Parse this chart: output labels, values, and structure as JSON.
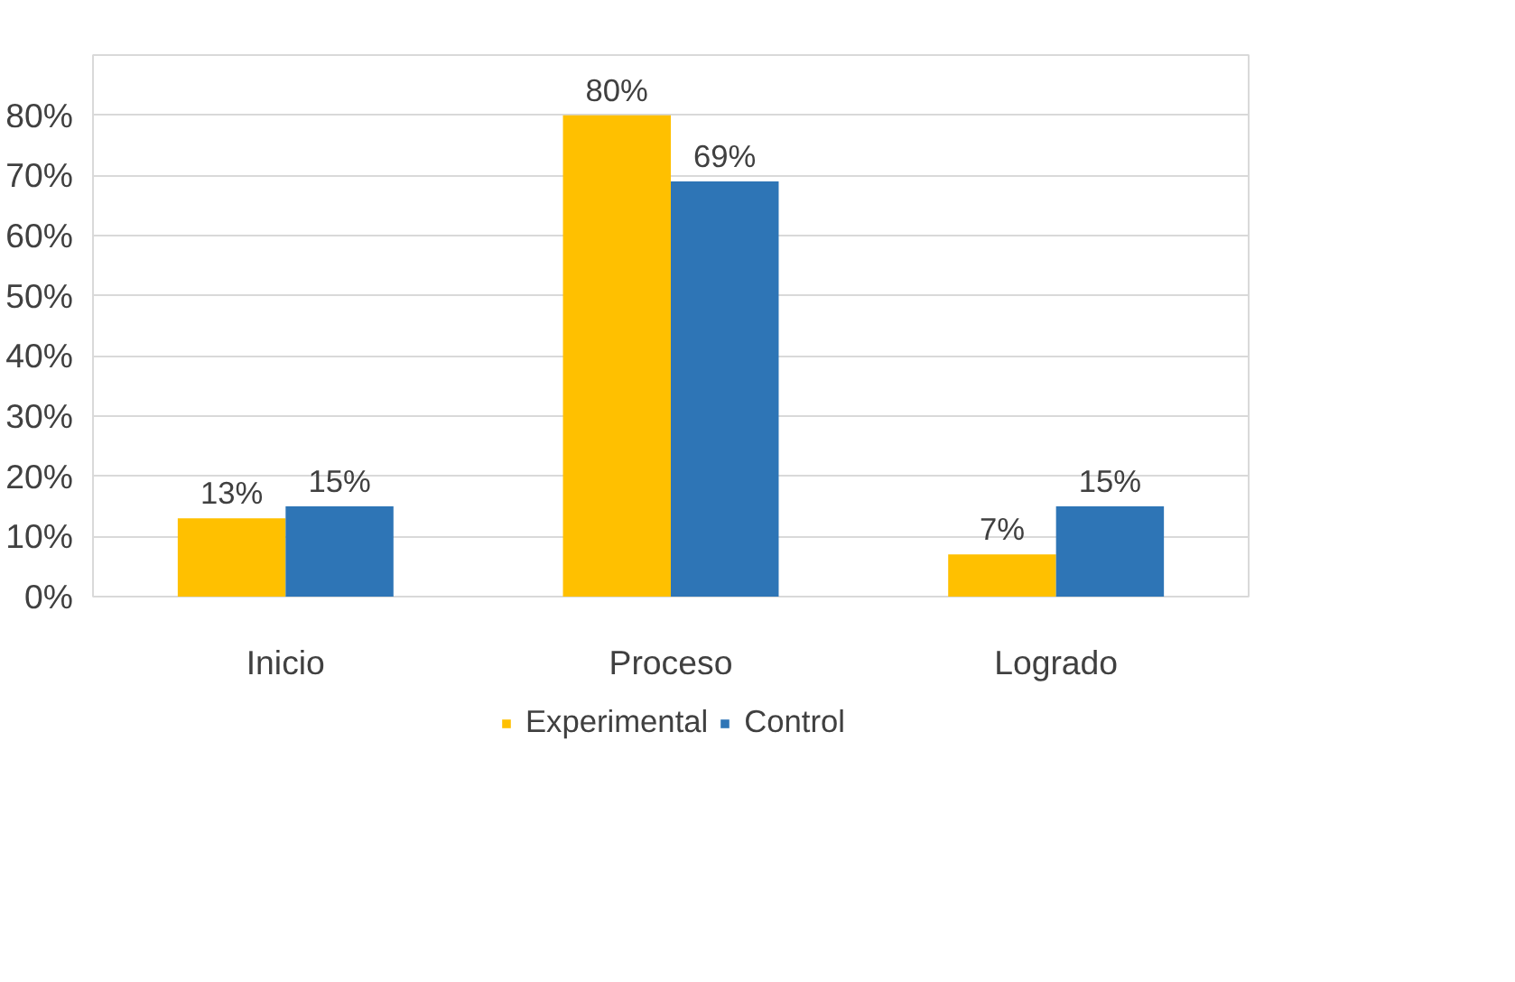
{
  "chart_data": {
    "type": "bar",
    "categories": [
      "Inicio",
      "Proceso",
      "Logrado"
    ],
    "series": [
      {
        "name": "Experimental",
        "color": "#ffc000",
        "values": [
          13,
          80,
          7
        ],
        "value_labels": [
          "13%",
          "80%",
          "7%"
        ]
      },
      {
        "name": "Control",
        "color": "#2e75b6",
        "values": [
          15,
          69,
          15
        ],
        "value_labels": [
          "15%",
          "69%",
          "15%"
        ]
      }
    ],
    "ylim": [
      0,
      90
    ],
    "yticks": [
      {
        "value": 0,
        "label": "0%"
      },
      {
        "value": 10,
        "label": "10%"
      },
      {
        "value": 20,
        "label": "20%"
      },
      {
        "value": 30,
        "label": "30%"
      },
      {
        "value": 40,
        "label": "40%"
      },
      {
        "value": 50,
        "label": "50%"
      },
      {
        "value": 60,
        "label": "60%"
      },
      {
        "value": 70,
        "label": "70%"
      },
      {
        "value": 80,
        "label": "80%"
      }
    ],
    "grid": "y",
    "legend": "bottom"
  }
}
